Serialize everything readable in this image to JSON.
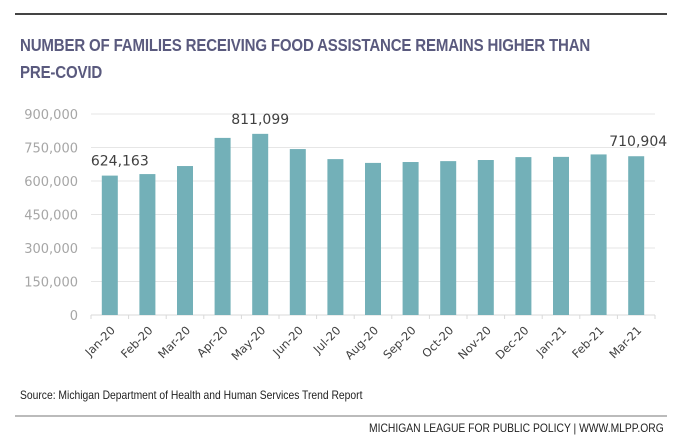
{
  "header": {
    "title_line1": "NUMBER OF FAMILIES RECEIVING FOOD ASSISTANCE REMAINS HIGHER THAN",
    "title_line2": "PRE-COVID"
  },
  "footer": {
    "source": "Source: Michigan Department of Health and Human Services Trend Report",
    "credit": "MICHIGAN LEAGUE FOR PUBLIC POLICY | WWW.MLPP.ORG"
  },
  "colors": {
    "bar": "#73b0b8",
    "title": "#5a5a7e",
    "gridline": "#e6e6e6",
    "tick_label": "#a6a6a6",
    "data_label": "#404040"
  },
  "chart_data": {
    "type": "bar",
    "title": "Number of families receiving food assistance remains higher than pre-COVID",
    "xlabel": "",
    "ylabel": "",
    "categories": [
      "Jan-20",
      "Feb-20",
      "Mar-20",
      "Apr-20",
      "May-20",
      "Jun-20",
      "Jul-20",
      "Aug-20",
      "Sep-20",
      "Oct-20",
      "Nov-20",
      "Dec-20",
      "Jan-21",
      "Feb-21",
      "Mar-21"
    ],
    "values": [
      624163,
      631000,
      667000,
      793000,
      811099,
      743000,
      698000,
      681000,
      685000,
      689000,
      694000,
      707000,
      708000,
      719000,
      710904
    ],
    "data_labels": [
      {
        "index": 0,
        "text": "624,163"
      },
      {
        "index": 4,
        "text": "811,099"
      },
      {
        "index": 14,
        "text": "710,904"
      }
    ],
    "ylim": [
      0,
      900000
    ],
    "yticks": [
      0,
      150000,
      300000,
      450000,
      600000,
      750000,
      900000
    ],
    "ytick_labels": [
      "0",
      "150,000",
      "300,000",
      "450,000",
      "600,000",
      "750,000",
      "900,000"
    ],
    "grid": true,
    "legend": "none"
  }
}
